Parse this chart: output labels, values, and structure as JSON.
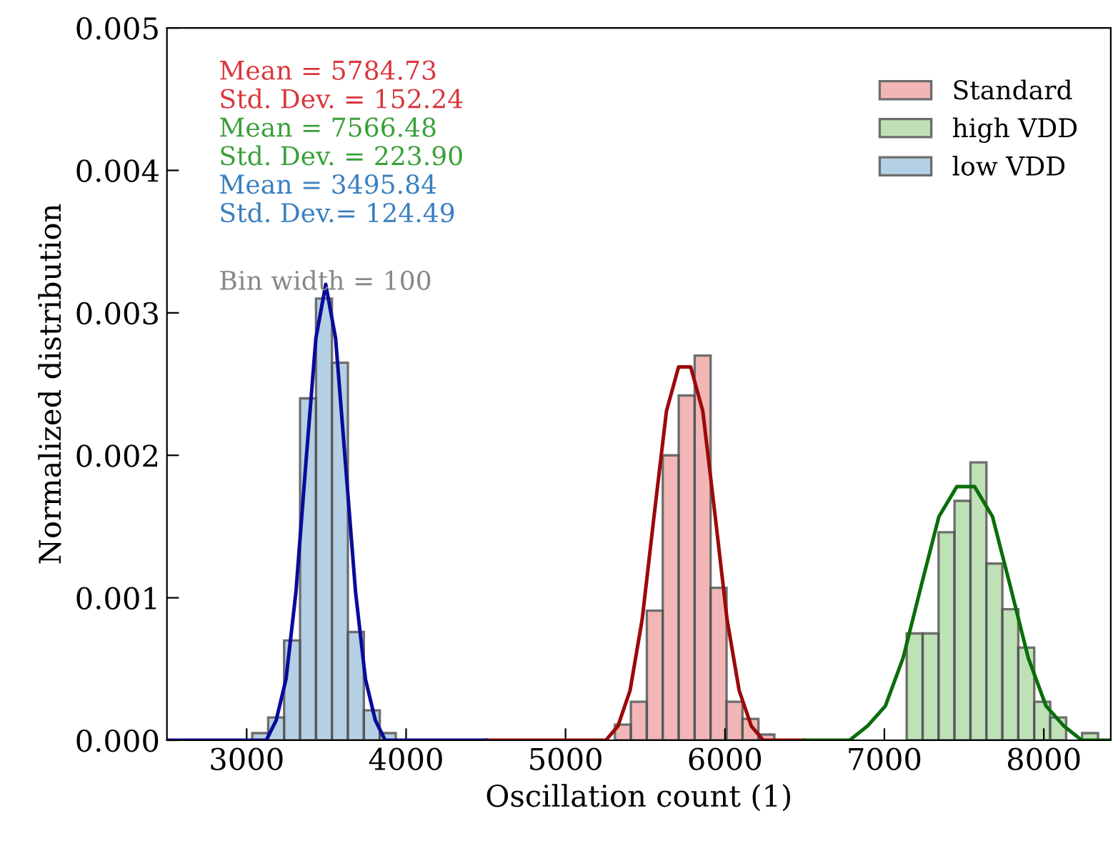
{
  "chart_data": {
    "type": "histogram",
    "xlabel": "Oscillation count (1)",
    "ylabel": "Normalized distribution",
    "xlim": [
      2500,
      8420
    ],
    "ylim": [
      0,
      0.005
    ],
    "xticks": [
      3000,
      4000,
      5000,
      6000,
      7000,
      8000
    ],
    "yticks": [
      {
        "value": 0,
        "label": "0.000"
      },
      {
        "value": 0.001,
        "label": "0.001"
      },
      {
        "value": 0.002,
        "label": "0.002"
      },
      {
        "value": 0.003,
        "label": "0.003"
      },
      {
        "value": 0.004,
        "label": "0.004"
      },
      {
        "value": 0.005,
        "label": "0.005"
      }
    ],
    "grid": false,
    "legend": "top right",
    "series": [
      {
        "name": "Standard",
        "color": "#f2aaaa",
        "bins": [
          5310,
          5410,
          5510,
          5610,
          5710,
          5810,
          5910,
          6010,
          6110,
          6210,
          6310
        ],
        "values": [
          0.00011,
          0.00027,
          0.00091,
          0.002,
          0.00242,
          0.0027,
          0.00107,
          0.00027,
          0.00015,
          4e-05
        ]
      },
      {
        "name": "high VDD",
        "color": "#b4dcaa",
        "bins": [
          7140,
          7240,
          7340,
          7440,
          7540,
          7640,
          7740,
          7840,
          7940,
          8040,
          8140,
          8240,
          8340
        ],
        "values": [
          0.00075,
          0.00075,
          0.00146,
          0.00168,
          0.00195,
          0.00124,
          0.00092,
          0.00065,
          0.00027,
          0.00016,
          null,
          5e-05
        ]
      },
      {
        "name": "low VDD",
        "color": "#a8c8e0",
        "bins": [
          3035,
          3135,
          3235,
          3335,
          3435,
          3535,
          3635,
          3735,
          3835,
          3935
        ],
        "values": [
          5e-05,
          0.00016,
          0.0007,
          0.0024,
          0.0031,
          0.00265,
          0.00076,
          0.00021,
          5e-05
        ]
      },
      {
        "type": "line",
        "color": "#9b0a0a",
        "x": [
          4500,
          5177,
          5253,
          5329,
          5405,
          5481,
          5557,
          5633,
          5709,
          5785,
          5861,
          5937,
          6013,
          6089,
          6165,
          6241,
          6317,
          6393,
          6500
        ],
        "values": [
          0,
          0,
          0,
          0.0001,
          0.00035,
          0.00085,
          0.00159,
          0.00231,
          0.00262,
          0.00262,
          0.00231,
          0.00159,
          0.00085,
          0.00035,
          0.0001,
          0,
          0,
          0,
          0
        ]
      },
      {
        "type": "line",
        "color": "#0a6e0a",
        "x": [
          6500,
          6670,
          6782,
          6894,
          7006,
          7118,
          7230,
          7342,
          7454,
          7566,
          7678,
          7790,
          7902,
          8014,
          8126,
          8238,
          8350,
          8420
        ],
        "values": [
          0,
          0,
          0,
          0.0001,
          0.00024,
          0.00058,
          0.00108,
          0.00157,
          0.00178,
          0.00178,
          0.00157,
          0.00108,
          0.00058,
          0.00024,
          0.0001,
          0,
          0,
          0
        ]
      },
      {
        "type": "line",
        "color": "#0a0a9a",
        "x": [
          2500,
          2998,
          3060,
          3123,
          3185,
          3247,
          3309,
          3371,
          3434,
          3496,
          3558,
          3620,
          3683,
          3745,
          3807,
          3869,
          3932,
          3994,
          4500
        ],
        "values": [
          0,
          0,
          0,
          0,
          0.00014,
          0.00043,
          0.00104,
          0.00194,
          0.00282,
          0.0032,
          0.00282,
          0.00194,
          0.00104,
          0.00043,
          0.00014,
          0,
          0,
          0,
          0
        ]
      }
    ],
    "annotations": [
      "Mean = 5784.73",
      "Std. Dev. = 152.24",
      "Mean = 7566.48",
      "Std. Dev. = 223.90",
      "Mean = 3495.84",
      "Std. Dev.= 124.49",
      "Bin width = 100"
    ]
  }
}
